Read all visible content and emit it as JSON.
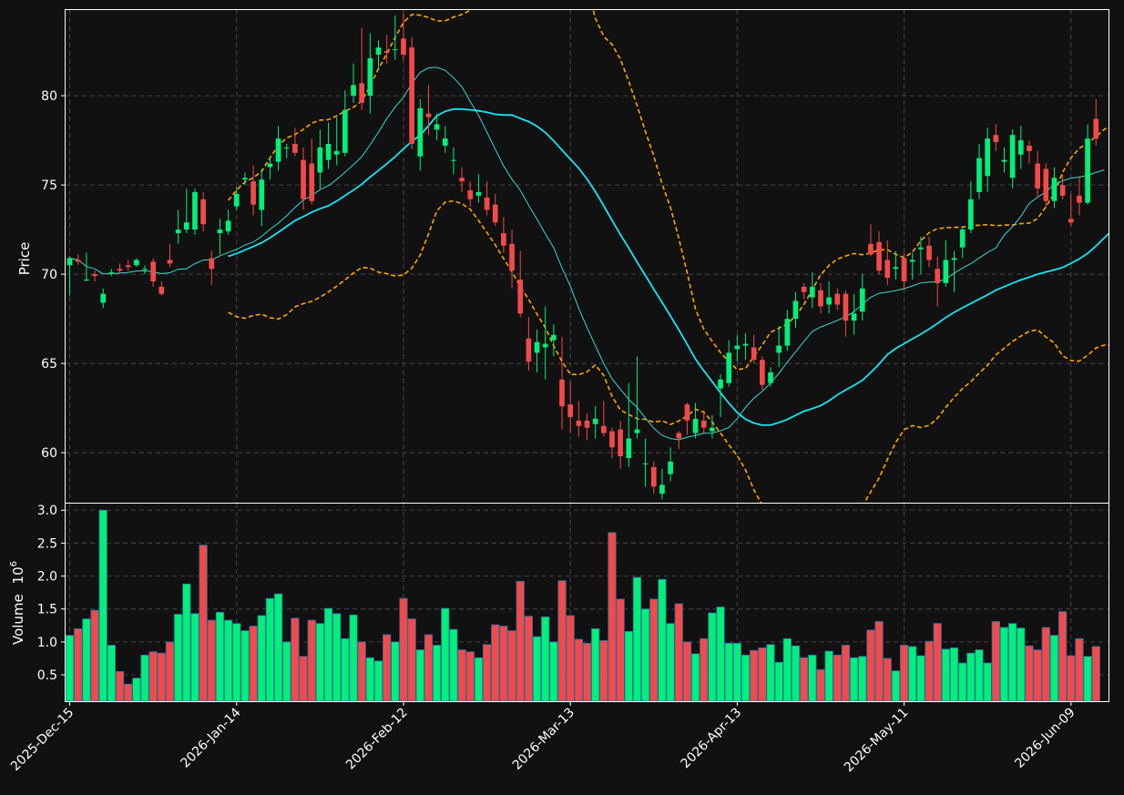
{
  "chart_data": {
    "type": "candlestick",
    "colors": {
      "background": "#111111",
      "up": "#00f07a",
      "down": "#f24a4a",
      "wick_up": "#00f07a",
      "wick_down": "#f24a4a",
      "ma_fast": "#3ad7d2",
      "ma_slow": "#15e6f4",
      "bands": "#ffa500",
      "grid": "#444444",
      "frame": "#ffffff",
      "text": "#ffffff"
    },
    "price_panel": {
      "ylabel": "Price",
      "ylim": [
        57.2,
        84.8
      ],
      "yticks": [
        60,
        65,
        70,
        75,
        80
      ],
      "grid": true
    },
    "volume_panel": {
      "ylabel": "Volume",
      "unit_exponent": "6",
      "ylim": [
        0.1,
        3.1
      ],
      "yticks": [
        0.5,
        1.0,
        1.5,
        2.0,
        2.5,
        3.0
      ],
      "ytick_labels": [
        "0.5",
        "1.0",
        "1.5",
        "2.0",
        "2.5",
        "3.0"
      ],
      "grid": true
    },
    "xlim": [
      -0.5,
      124.5
    ],
    "xticks": [
      {
        "index": 0,
        "label": "2025-Dec-15"
      },
      {
        "index": 20,
        "label": "2026-Jan-14"
      },
      {
        "index": 40,
        "label": "2026-Feb-12"
      },
      {
        "index": 60,
        "label": "2026-Mar-13"
      },
      {
        "index": 80,
        "label": "2026-Apr-13"
      },
      {
        "index": 100,
        "label": "2026-May-11"
      },
      {
        "index": 120,
        "label": "2026-Jun-09"
      }
    ],
    "close": [
      70.9,
      70.7,
      69.7,
      69.9,
      68.9,
      70.1,
      70.2,
      70.4,
      70.8,
      70.3,
      69.6,
      68.9,
      70.6,
      72.5,
      72.9,
      74.6,
      72.8,
      70.3,
      72.5,
      73.0,
      74.5,
      75.4,
      73.9,
      75.3,
      76.2,
      77.6,
      77.1,
      76.8,
      74.2,
      74.1,
      77.1,
      77.3,
      76.9,
      79.2,
      80.6,
      79.6,
      82.1,
      82.7,
      82.4,
      82.6,
      82.3,
      77.3,
      79.3,
      78.8,
      78.4,
      77.6,
      76.4,
      75.2,
      74.2,
      74.6,
      73.6,
      72.9,
      71.6,
      70.2,
      67.8,
      65.1,
      66.2,
      66.1,
      66.6,
      62.6,
      62.0,
      61.5,
      61.4,
      61.9,
      61.1,
      60.3,
      59.8,
      60.8,
      61.3,
      59.4,
      58.1,
      58.2,
      59.5,
      60.8,
      61.8,
      61.9,
      61.4,
      61.4,
      64.1,
      65.6,
      66.0,
      66.1,
      65.2,
      63.8,
      64.5,
      66.0,
      67.5,
      68.5,
      69.0,
      69.3,
      68.2,
      68.7,
      68.3,
      67.4,
      67.8,
      69.2,
      71.1,
      70.2,
      69.8,
      70.4,
      69.6,
      70.8,
      71.5,
      70.8,
      69.5,
      70.8,
      70.9,
      72.5,
      74.2,
      76.5,
      77.6,
      77.4,
      76.4,
      77.8,
      77.5,
      76.9,
      74.8,
      74.1,
      75.4,
      74.4,
      72.9,
      74.0,
      77.6,
      77.6
    ],
    "open": [
      70.5,
      70.8,
      69.7,
      70.0,
      68.4,
      70.1,
      70.3,
      70.5,
      70.5,
      70.3,
      70.7,
      69.3,
      70.8,
      72.3,
      72.5,
      72.5,
      74.2,
      70.9,
      72.3,
      72.4,
      73.8,
      75.3,
      75.2,
      73.6,
      76.0,
      76.3,
      77.1,
      77.3,
      76.4,
      76.2,
      75.7,
      76.4,
      76.7,
      76.8,
      80.0,
      80.7,
      80.0,
      82.3,
      82.5,
      82.6,
      83.2,
      82.7,
      76.6,
      79.0,
      78.1,
      77.2,
      76.4,
      75.4,
      74.7,
      74.4,
      74.3,
      73.9,
      72.3,
      71.7,
      69.7,
      66.4,
      65.6,
      65.9,
      66.3,
      64.1,
      62.7,
      61.8,
      61.8,
      61.6,
      61.5,
      61.2,
      61.3,
      59.7,
      61.1,
      59.4,
      59.2,
      57.7,
      58.8,
      61.1,
      62.7,
      61.1,
      61.8,
      61.2,
      63.6,
      63.9,
      65.8,
      66.0,
      65.9,
      65.2,
      63.9,
      65.6,
      66.0,
      67.5,
      69.3,
      68.7,
      69.1,
      68.3,
      68.9,
      68.9,
      67.4,
      67.9,
      71.7,
      71.8,
      70.8,
      70.3,
      70.9,
      70.7,
      71.4,
      71.6,
      70.3,
      69.5,
      70.8,
      71.5,
      72.5,
      74.6,
      75.5,
      77.8,
      76.3,
      75.4,
      76.7,
      77.2,
      76.2,
      75.9,
      74.1,
      75.0,
      73.1,
      74.4,
      74.0,
      78.7
    ],
    "high": [
      71.0,
      71.1,
      71.2,
      70.2,
      69.2,
      70.3,
      70.6,
      70.8,
      70.9,
      70.5,
      70.9,
      69.6,
      71.7,
      73.6,
      74.8,
      74.8,
      74.6,
      71.3,
      73.1,
      73.6,
      74.9,
      75.7,
      76.1,
      75.9,
      76.6,
      78.3,
      77.3,
      78.2,
      77.1,
      77.6,
      78.1,
      78.5,
      78.8,
      80.3,
      81.8,
      83.8,
      83.5,
      83.1,
      83.4,
      84.5,
      84.6,
      83.3,
      79.8,
      80.6,
      79.0,
      78.3,
      77.1,
      76.0,
      75.2,
      75.6,
      75.2,
      74.5,
      73.2,
      72.5,
      71.3,
      67.6,
      66.9,
      68.2,
      67.2,
      66.5,
      64.0,
      62.9,
      62.2,
      62.6,
      62.9,
      61.4,
      61.8,
      63.9,
      65.4,
      60.8,
      59.5,
      59.1,
      60.3,
      61.2,
      62.8,
      62.8,
      62.4,
      62.1,
      64.4,
      66.3,
      66.6,
      66.7,
      66.6,
      65.4,
      64.8,
      67.1,
      68.0,
      69.0,
      69.5,
      70.1,
      69.5,
      69.6,
      69.2,
      69.1,
      68.9,
      70.0,
      72.8,
      72.4,
      71.9,
      71.3,
      71.2,
      71.2,
      72.1,
      72.1,
      71.0,
      71.9,
      71.3,
      72.6,
      75.2,
      77.3,
      78.2,
      78.4,
      77.1,
      78.1,
      78.3,
      77.5,
      76.9,
      76.2,
      76.0,
      75.6,
      74.5,
      75.5,
      78.4,
      79.8
    ],
    "low": [
      68.8,
      70.5,
      69.6,
      69.6,
      68.1,
      69.9,
      70.0,
      70.2,
      70.4,
      70.0,
      69.3,
      68.8,
      70.4,
      71.7,
      72.3,
      72.2,
      72.4,
      69.4,
      71.1,
      72.2,
      73.6,
      75.0,
      73.3,
      72.7,
      75.3,
      75.8,
      76.5,
      76.6,
      73.6,
      73.9,
      74.8,
      75.9,
      76.1,
      76.6,
      79.6,
      79.2,
      79.0,
      81.5,
      81.8,
      82.0,
      82.0,
      77.0,
      75.8,
      77.8,
      77.5,
      76.8,
      75.6,
      74.6,
      73.8,
      74.0,
      73.3,
      72.7,
      71.2,
      69.2,
      67.6,
      64.6,
      64.5,
      64.1,
      65.4,
      61.3,
      61.1,
      60.9,
      60.7,
      60.8,
      60.9,
      59.7,
      59.1,
      59.2,
      60.8,
      58.1,
      57.7,
      57.4,
      58.4,
      60.2,
      61.0,
      60.8,
      61.1,
      60.8,
      62.0,
      63.7,
      65.1,
      65.2,
      65.0,
      63.5,
      63.7,
      64.8,
      65.7,
      67.0,
      68.6,
      68.1,
      67.8,
      67.8,
      68.0,
      66.5,
      66.6,
      67.4,
      71.0,
      70.0,
      69.4,
      69.7,
      69.1,
      69.7,
      70.0,
      70.4,
      68.2,
      69.3,
      69.0,
      70.9,
      72.3,
      74.2,
      74.6,
      76.9,
      75.7,
      74.8,
      75.9,
      76.2,
      74.3,
      73.7,
      73.7,
      74.2,
      72.7,
      73.3,
      73.9,
      77.2
    ],
    "volume": [
      1.1,
      1.2,
      1.35,
      1.48,
      3.0,
      0.95,
      0.55,
      0.36,
      0.45,
      0.8,
      0.85,
      0.83,
      1.0,
      1.42,
      1.88,
      1.43,
      2.47,
      1.33,
      1.45,
      1.33,
      1.28,
      1.17,
      1.24,
      1.4,
      1.66,
      1.73,
      1.0,
      1.36,
      0.78,
      1.33,
      1.28,
      1.51,
      1.43,
      1.05,
      1.41,
      1.0,
      0.76,
      0.71,
      1.11,
      1.0,
      1.66,
      1.35,
      0.88,
      1.11,
      0.95,
      1.51,
      1.19,
      0.88,
      0.85,
      0.76,
      0.96,
      1.26,
      1.24,
      1.17,
      1.92,
      1.39,
      1.08,
      1.38,
      1.0,
      1.93,
      1.4,
      1.04,
      0.98,
      1.2,
      1.02,
      2.66,
      1.65,
      1.16,
      1.98,
      1.5,
      1.65,
      1.95,
      1.28,
      1.58,
      1.0,
      0.82,
      1.05,
      1.44,
      1.53,
      0.98,
      0.98,
      0.8,
      0.87,
      0.91,
      0.96,
      0.69,
      1.05,
      0.94,
      0.76,
      0.8,
      0.58,
      0.86,
      0.8,
      0.95,
      0.76,
      0.78,
      1.18,
      1.31,
      0.75,
      0.56,
      0.95,
      0.93,
      0.79,
      1.01,
      1.28,
      0.89,
      0.91,
      0.68,
      0.83,
      0.88,
      0.68,
      1.31,
      1.22,
      1.28,
      1.21,
      0.94,
      0.88,
      1.22,
      1.1,
      1.46,
      0.79,
      1.05,
      0.78,
      0.93
    ],
    "ma_fast": {
      "start": 0,
      "values": [
        70.9,
        70.8,
        70.43,
        70.3,
        70.02,
        70.03,
        70.06,
        70.1,
        70.18,
        70.19,
        70.14,
        70.03,
        70.08,
        70.28,
        70.3,
        70.59,
        70.79,
        70.8,
        71.03,
        71.22,
        71.39,
        71.63,
        71.8,
        72.12,
        72.51,
        72.86,
        73.27,
        73.74,
        74.16,
        74.4,
        74.74,
        74.96,
        75.31,
        75.72,
        76.13,
        76.58,
        77.25,
        77.96,
        78.72,
        79.36,
        79.9,
        80.69,
        81.31,
        81.56,
        81.59,
        81.42,
        81.01,
        80.5,
        79.67,
        78.9,
        77.96,
        77.01,
        76.07,
        75.32,
        74.7,
        73.86,
        73.09,
        72.26,
        71.48,
        70.35,
        69.32,
        68.1,
        67.01,
        65.99,
        65.0,
        64.14,
        63.56,
        62.99,
        62.53,
        61.94,
        61.37,
        60.97,
        60.79,
        60.72,
        60.87,
        60.97,
        61.09,
        61.1,
        61.23,
        61.41,
        61.91,
        62.54,
        63.05,
        63.44,
        63.9,
        64.45,
        65.07,
        65.65,
        66.24,
        66.79,
        67.04,
        67.22,
        67.41,
        67.62,
        67.91,
        68.3,
        68.71,
        68.93,
        69.0,
        69.08,
        69.19,
        69.34,
        69.51,
        69.56,
        69.57,
        69.73,
        70.05,
        70.34,
        70.59,
        70.91,
        71.22,
        71.47,
        72.2,
        72.66,
        73.25,
        73.97,
        74.31,
        74.62,
        75.03,
        75.23,
        75.38,
        75.44,
        75.54,
        75.7,
        75.84
      ]
    },
    "ma_slow": {
      "start": 19,
      "values": [
        71.0,
        71.16,
        71.35,
        71.55,
        71.76,
        72.04,
        72.35,
        72.68,
        73.0,
        73.23,
        73.47,
        73.67,
        73.83,
        74.1,
        74.41,
        74.71,
        75.04,
        75.44,
        75.81,
        76.19,
        76.58,
        77.03,
        77.44,
        77.79,
        78.32,
        78.87,
        79.12,
        79.25,
        79.25,
        79.21,
        79.15,
        79.07,
        78.96,
        78.92,
        78.92,
        78.73,
        78.55,
        78.29,
        77.94,
        77.47,
        76.95,
        76.45,
        75.94,
        75.33,
        74.62,
        73.83,
        73.01,
        72.22,
        71.47,
        70.67,
        69.93,
        69.16,
        68.42,
        67.66,
        66.89,
        66.07,
        65.24,
        64.59,
        63.98,
        63.35,
        62.77,
        62.25,
        61.88,
        61.66,
        61.54,
        61.55,
        61.69,
        61.86,
        62.09,
        62.32,
        62.47,
        62.64,
        62.91,
        63.24,
        63.52,
        63.77,
        64.05,
        64.49,
        64.97,
        65.5,
        65.84,
        66.11,
        66.38,
        66.64,
        66.93,
        67.24,
        67.57,
        67.86,
        68.12,
        68.36,
        68.6,
        68.84,
        69.1,
        69.3,
        69.5,
        69.68,
        69.83,
        70.0,
        70.13,
        70.24,
        70.37,
        70.61,
        70.85,
        71.17,
        71.58,
        72.04,
        72.47,
        72.82,
        73.09,
        73.34,
        73.56,
        73.73,
        73.99,
        74.35
      ]
    },
    "band_upper": {
      "start": 19,
      "values": [
        74.14,
        74.71,
        75.17,
        75.41,
        75.76,
        76.52,
        77.21,
        77.63,
        77.83,
        78.11,
        78.46,
        78.63,
        78.66,
        78.87,
        79.13,
        79.35,
        79.71,
        80.54,
        81.51,
        82.35,
        83.26,
        84.1,
        84.55,
        84.51,
        84.38,
        84.19,
        84.2,
        84.4,
        84.55,
        84.78,
        85.29,
        85.81,
        86.27,
        86.97,
        87.7,
        88.16,
        88.51,
        88.82,
        88.87,
        88.96,
        88.79,
        88.5,
        87.51,
        86.13,
        84.32,
        83.33,
        82.86,
        82.05,
        80.8,
        79.44,
        77.99,
        76.61,
        75.05,
        73.74,
        72.0,
        70.08,
        68.04,
        66.92,
        66.24,
        65.61,
        65.1,
        64.66,
        64.72,
        65.4,
        66.03,
        66.75,
        66.97,
        67.22,
        67.66,
        68.31,
        69.13,
        69.97,
        70.49,
        70.84,
        71.02,
        71.16,
        71.09,
        71.18,
        71.37,
        71.37,
        71.11,
        70.93,
        71.24,
        71.87,
        72.33,
        72.55,
        72.6,
        72.62,
        72.64,
        72.74,
        72.74,
        72.78,
        72.72,
        72.75,
        72.76,
        72.83,
        72.86,
        73.11,
        73.78,
        74.53,
        75.71,
        76.52,
        77.05,
        77.34,
        77.71,
        78.11,
        78.43,
        78.47,
        78.52,
        78.75,
        78.81,
        78.75,
        79.06,
        79.51
      ]
    },
    "band_lower": {
      "start": 19,
      "values": [
        67.86,
        67.61,
        67.53,
        67.69,
        67.76,
        67.56,
        67.49,
        67.73,
        68.17,
        68.35,
        68.48,
        68.71,
        69.0,
        69.33,
        69.69,
        70.07,
        70.37,
        70.34,
        70.11,
        70.03,
        69.9,
        69.96,
        70.33,
        71.07,
        72.26,
        73.55,
        74.04,
        74.1,
        73.95,
        73.64,
        73.01,
        72.33,
        71.65,
        70.87,
        70.14,
        69.3,
        68.59,
        67.76,
        67.01,
        65.98,
        65.11,
        64.4,
        64.37,
        64.53,
        64.92,
        64.33,
        63.16,
        62.39,
        62.14,
        61.9,
        61.87,
        61.71,
        61.79,
        61.58,
        61.78,
        62.06,
        62.44,
        62.26,
        61.72,
        61.09,
        60.44,
        59.84,
        59.04,
        57.92,
        57.05,
        56.35,
        56.41,
        56.5,
        56.52,
        56.33,
        55.81,
        55.31,
        55.33,
        55.64,
        56.02,
        56.38,
        57.01,
        57.8,
        58.57,
        59.63,
        60.57,
        61.29,
        61.52,
        61.41,
        61.53,
        61.93,
        62.54,
        63.1,
        63.6,
        63.98,
        64.46,
        64.9,
        65.48,
        65.85,
        66.24,
        66.53,
        66.8,
        66.89,
        66.48,
        66.15,
        65.43,
        65.16,
        65.13,
        65.46,
        65.87,
        66.03,
        66.03,
        66.33,
        66.69,
        66.93,
        67.31,
        67.71,
        67.86,
        68.21
      ]
    }
  }
}
